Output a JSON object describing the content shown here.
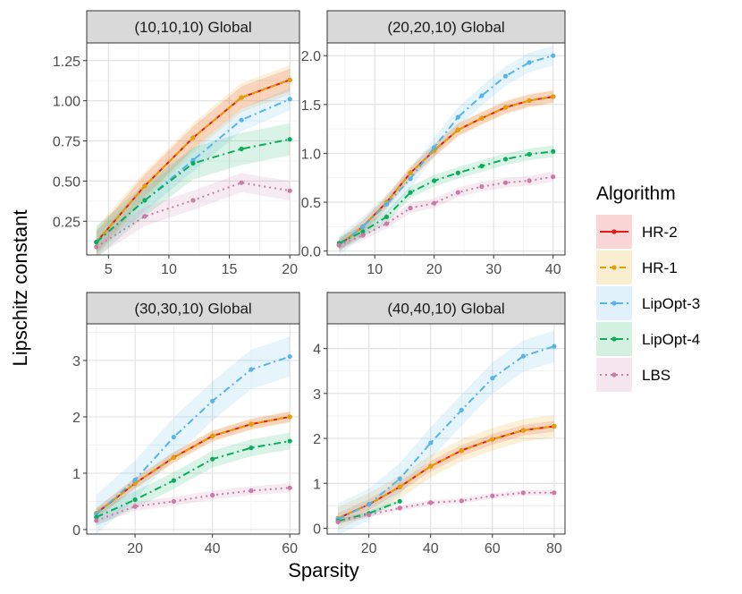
{
  "figure": {
    "xlabel": "Sparsity",
    "ylabel": "Lipschitz constant",
    "legend_title": "Algorithm",
    "legend_position": "right"
  },
  "legend": [
    {
      "name": "HR-2",
      "color": "#e8191b",
      "dash": "solid"
    },
    {
      "name": "HR-1",
      "color": "#e69f00",
      "dash": "dashed"
    },
    {
      "name": "LipOpt-3",
      "color": "#56b4e9",
      "dash": "dotdash"
    },
    {
      "name": "LipOpt-4",
      "color": "#0aad5b",
      "dash": "dotdash"
    },
    {
      "name": "LBS",
      "color": "#cc79a7",
      "dash": "dotted"
    }
  ],
  "chart_data": [
    {
      "type": "line",
      "title": "(10,10,10) Global",
      "xlim": [
        3.2,
        20.8
      ],
      "ylim": [
        0.04,
        1.36
      ],
      "xticks": [
        5,
        10,
        15,
        20
      ],
      "yticks": [
        0.25,
        0.5,
        0.75,
        1.0,
        1.25
      ],
      "ytick_labels": [
        "0.25",
        "0.50",
        "0.75",
        "1.00",
        "1.25"
      ],
      "series": [
        {
          "name": "HR-2",
          "x": [
            4,
            8,
            12,
            16,
            20
          ],
          "y": [
            0.12,
            0.47,
            0.77,
            1.02,
            1.13
          ],
          "band": 0.07
        },
        {
          "name": "HR-1",
          "x": [
            4,
            8,
            12,
            16,
            20
          ],
          "y": [
            0.12,
            0.47,
            0.77,
            1.02,
            1.13
          ],
          "band": 0.09
        },
        {
          "name": "LipOpt-3",
          "x": [
            4,
            8,
            12,
            16,
            20
          ],
          "y": [
            0.12,
            0.38,
            0.63,
            0.88,
            1.01
          ],
          "band": 0.07
        },
        {
          "name": "LipOpt-4",
          "x": [
            4,
            8,
            12,
            16,
            20
          ],
          "y": [
            0.12,
            0.38,
            0.61,
            0.7,
            0.76
          ],
          "band": 0.1
        },
        {
          "name": "LBS",
          "x": [
            4,
            8,
            12,
            16,
            20
          ],
          "y": [
            0.09,
            0.28,
            0.38,
            0.49,
            0.44
          ],
          "band": 0.06
        }
      ]
    },
    {
      "type": "line",
      "title": "(20,20,10) Global",
      "xlim": [
        2,
        42
      ],
      "ylim": [
        -0.04,
        2.13
      ],
      "xticks": [
        10,
        20,
        30,
        40
      ],
      "yticks": [
        0.0,
        0.5,
        1.0,
        1.5,
        2.0
      ],
      "ytick_labels": [
        "0.0",
        "0.5",
        "1.0",
        "1.5",
        "2.0"
      ],
      "series": [
        {
          "name": "HR-2",
          "x": [
            4,
            8,
            12,
            16,
            20,
            24,
            28,
            32,
            36,
            40
          ],
          "y": [
            0.06,
            0.25,
            0.5,
            0.8,
            1.03,
            1.24,
            1.36,
            1.47,
            1.54,
            1.58
          ],
          "band": 0.06
        },
        {
          "name": "HR-1",
          "x": [
            4,
            8,
            12,
            16,
            20,
            24,
            28,
            32,
            36,
            40
          ],
          "y": [
            0.06,
            0.25,
            0.5,
            0.8,
            1.03,
            1.24,
            1.36,
            1.47,
            1.54,
            1.58
          ],
          "band": 0.07
        },
        {
          "name": "LipOpt-3",
          "x": [
            4,
            8,
            12,
            16,
            20,
            24,
            28,
            32,
            36,
            40
          ],
          "y": [
            0.06,
            0.25,
            0.48,
            0.74,
            1.06,
            1.37,
            1.59,
            1.79,
            1.93,
            2.0
          ],
          "band": 0.1
        },
        {
          "name": "LipOpt-4",
          "x": [
            4,
            8,
            12,
            16,
            20,
            24,
            28,
            32,
            36,
            40
          ],
          "y": [
            0.08,
            0.2,
            0.35,
            0.6,
            0.72,
            0.8,
            0.87,
            0.94,
            0.99,
            1.02
          ],
          "band": 0.06
        },
        {
          "name": "LBS",
          "x": [
            4,
            8,
            12,
            16,
            20,
            24,
            28,
            32,
            36,
            40
          ],
          "y": [
            0.06,
            0.16,
            0.28,
            0.44,
            0.49,
            0.6,
            0.66,
            0.7,
            0.72,
            0.76
          ],
          "band": 0.05
        }
      ]
    },
    {
      "type": "line",
      "title": "(30,30,10) Global",
      "xlim": [
        7.5,
        62.5
      ],
      "ylim": [
        -0.08,
        3.65
      ],
      "xticks": [
        20,
        40,
        60
      ],
      "yticks": [
        0,
        1,
        2,
        3
      ],
      "ytick_labels": [
        "0",
        "1",
        "2",
        "3"
      ],
      "series": [
        {
          "name": "HR-2",
          "x": [
            10,
            20,
            30,
            40,
            50,
            60
          ],
          "y": [
            0.29,
            0.82,
            1.28,
            1.66,
            1.87,
            2.0
          ],
          "band": 0.09
        },
        {
          "name": "HR-1",
          "x": [
            10,
            20,
            30,
            40,
            50,
            60
          ],
          "y": [
            0.29,
            0.82,
            1.28,
            1.66,
            1.87,
            2.0
          ],
          "band": 0.1
        },
        {
          "name": "LipOpt-3",
          "x": [
            10,
            20,
            30,
            40,
            50,
            60
          ],
          "y": [
            0.27,
            0.88,
            1.64,
            2.28,
            2.84,
            3.07
          ],
          "band": 0.35
        },
        {
          "name": "LipOpt-4",
          "x": [
            10,
            20,
            30,
            40,
            50,
            60
          ],
          "y": [
            0.22,
            0.53,
            0.87,
            1.25,
            1.45,
            1.57
          ],
          "band": 0.15
        },
        {
          "name": "LBS",
          "x": [
            10,
            20,
            30,
            40,
            50,
            60
          ],
          "y": [
            0.16,
            0.41,
            0.5,
            0.61,
            0.69,
            0.74
          ],
          "band": 0.08
        }
      ]
    },
    {
      "type": "line",
      "title": "(40,40,10) Global",
      "xlim": [
        6.5,
        83.5
      ],
      "ylim": [
        -0.13,
        4.55
      ],
      "xticks": [
        20,
        40,
        60,
        80
      ],
      "yticks": [
        0,
        1,
        2,
        3,
        4
      ],
      "ytick_labels": [
        "0",
        "1",
        "2",
        "3",
        "4"
      ],
      "series": [
        {
          "name": "HR-2",
          "x": [
            10,
            20,
            30,
            40,
            50,
            60,
            70,
            80
          ],
          "y": [
            0.22,
            0.53,
            0.92,
            1.38,
            1.73,
            1.98,
            2.18,
            2.27
          ],
          "band": 0.12
        },
        {
          "name": "HR-1",
          "x": [
            10,
            20,
            30,
            40,
            50,
            60,
            70,
            80
          ],
          "y": [
            0.22,
            0.53,
            0.92,
            1.38,
            1.73,
            1.98,
            2.18,
            2.27
          ],
          "band": 0.25
        },
        {
          "name": "LipOpt-3",
          "x": [
            10,
            20,
            30,
            40,
            50,
            60,
            70,
            80
          ],
          "y": [
            0.2,
            0.53,
            1.1,
            1.9,
            2.63,
            3.34,
            3.83,
            4.05
          ],
          "band": 0.35
        },
        {
          "name": "LipOpt-4",
          "x": [
            10,
            20,
            30
          ],
          "y": [
            0.16,
            0.33,
            0.6
          ],
          "band": 0.05
        },
        {
          "name": "LBS",
          "x": [
            10,
            20,
            30,
            40,
            50,
            60,
            70,
            80
          ],
          "y": [
            0.14,
            0.3,
            0.45,
            0.57,
            0.61,
            0.72,
            0.79,
            0.79
          ],
          "band": 0.06
        }
      ]
    }
  ]
}
